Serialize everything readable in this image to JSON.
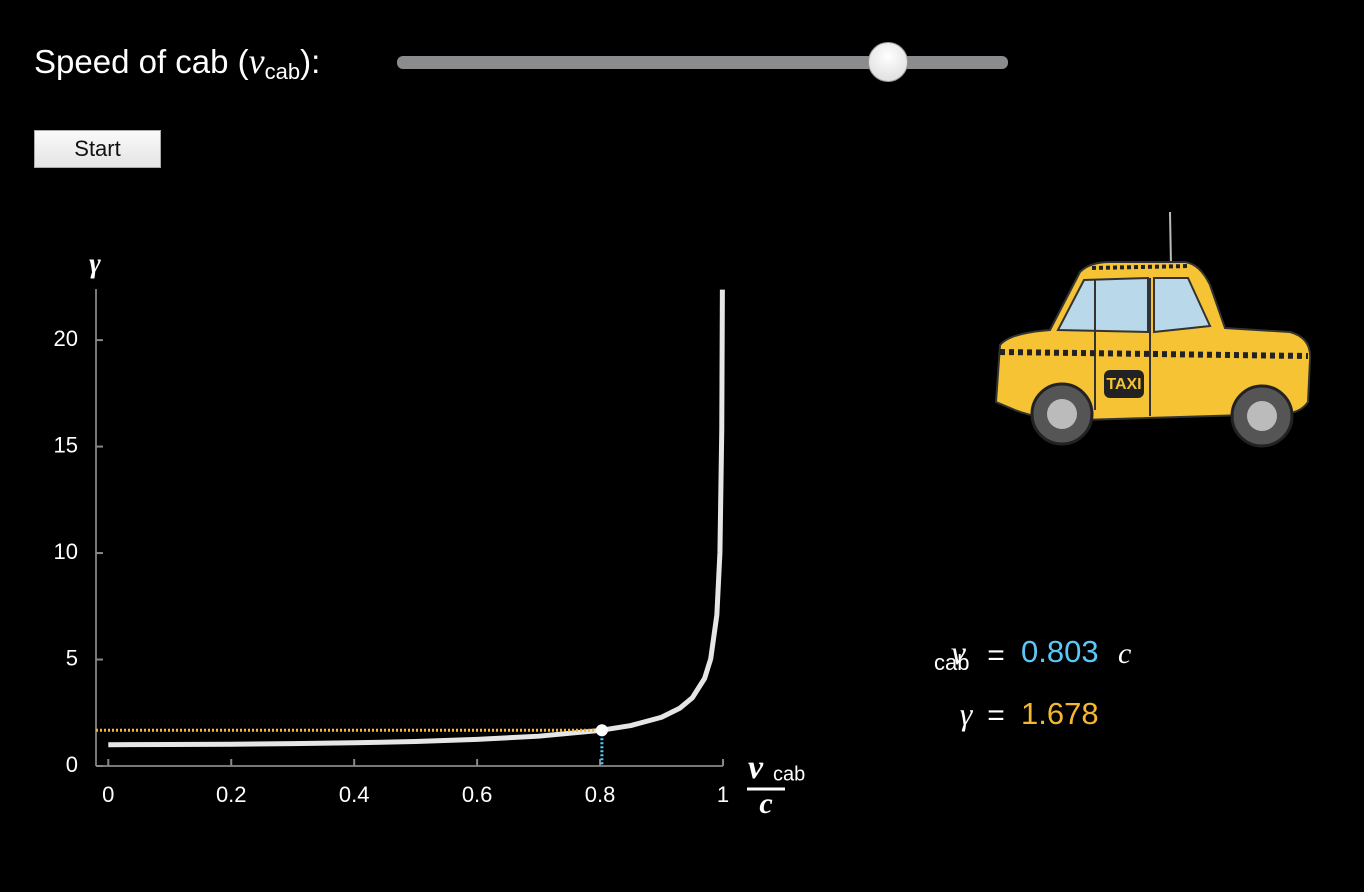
{
  "controls": {
    "slider_label": {
      "text": "Speed of cab (",
      "var": "v",
      "sub": "cab",
      "end": "):"
    },
    "button": "Start"
  },
  "chart_data": {
    "type": "line",
    "y_label": "γ",
    "x_label": {
      "var": "v",
      "sub": "cab",
      "denominator": "c"
    },
    "x": [
      0,
      0.1,
      0.2,
      0.3,
      0.4,
      0.5,
      0.6,
      0.7,
      0.8,
      0.85,
      0.9,
      0.93,
      0.95,
      0.97,
      0.98,
      0.99,
      0.995,
      0.998,
      0.999
    ],
    "series": [
      {
        "values": [
          1,
          1.01,
          1.02,
          1.05,
          1.09,
          1.15,
          1.25,
          1.4,
          1.67,
          1.9,
          2.29,
          2.72,
          3.2,
          4.11,
          5.03,
          7.09,
          10.01,
          15.82,
          22.37
        ],
        "color": "#e6e6e6"
      }
    ],
    "marker": {
      "x": 0.803,
      "y": 1.678,
      "x_color": "#5ac8f5",
      "y_color": "#f5b731"
    },
    "xlim": [
      -0.02,
      1
    ],
    "ylim": [
      0,
      22.4
    ],
    "xticks": [
      0,
      0.2,
      0.4,
      0.6,
      0.8,
      1
    ],
    "yticks": [
      0,
      5,
      10,
      15,
      20
    ]
  },
  "readout": {
    "v_var": "v",
    "v_sub": "cab",
    "equals": "=",
    "unit": "c",
    "gamma": "γ"
  }
}
